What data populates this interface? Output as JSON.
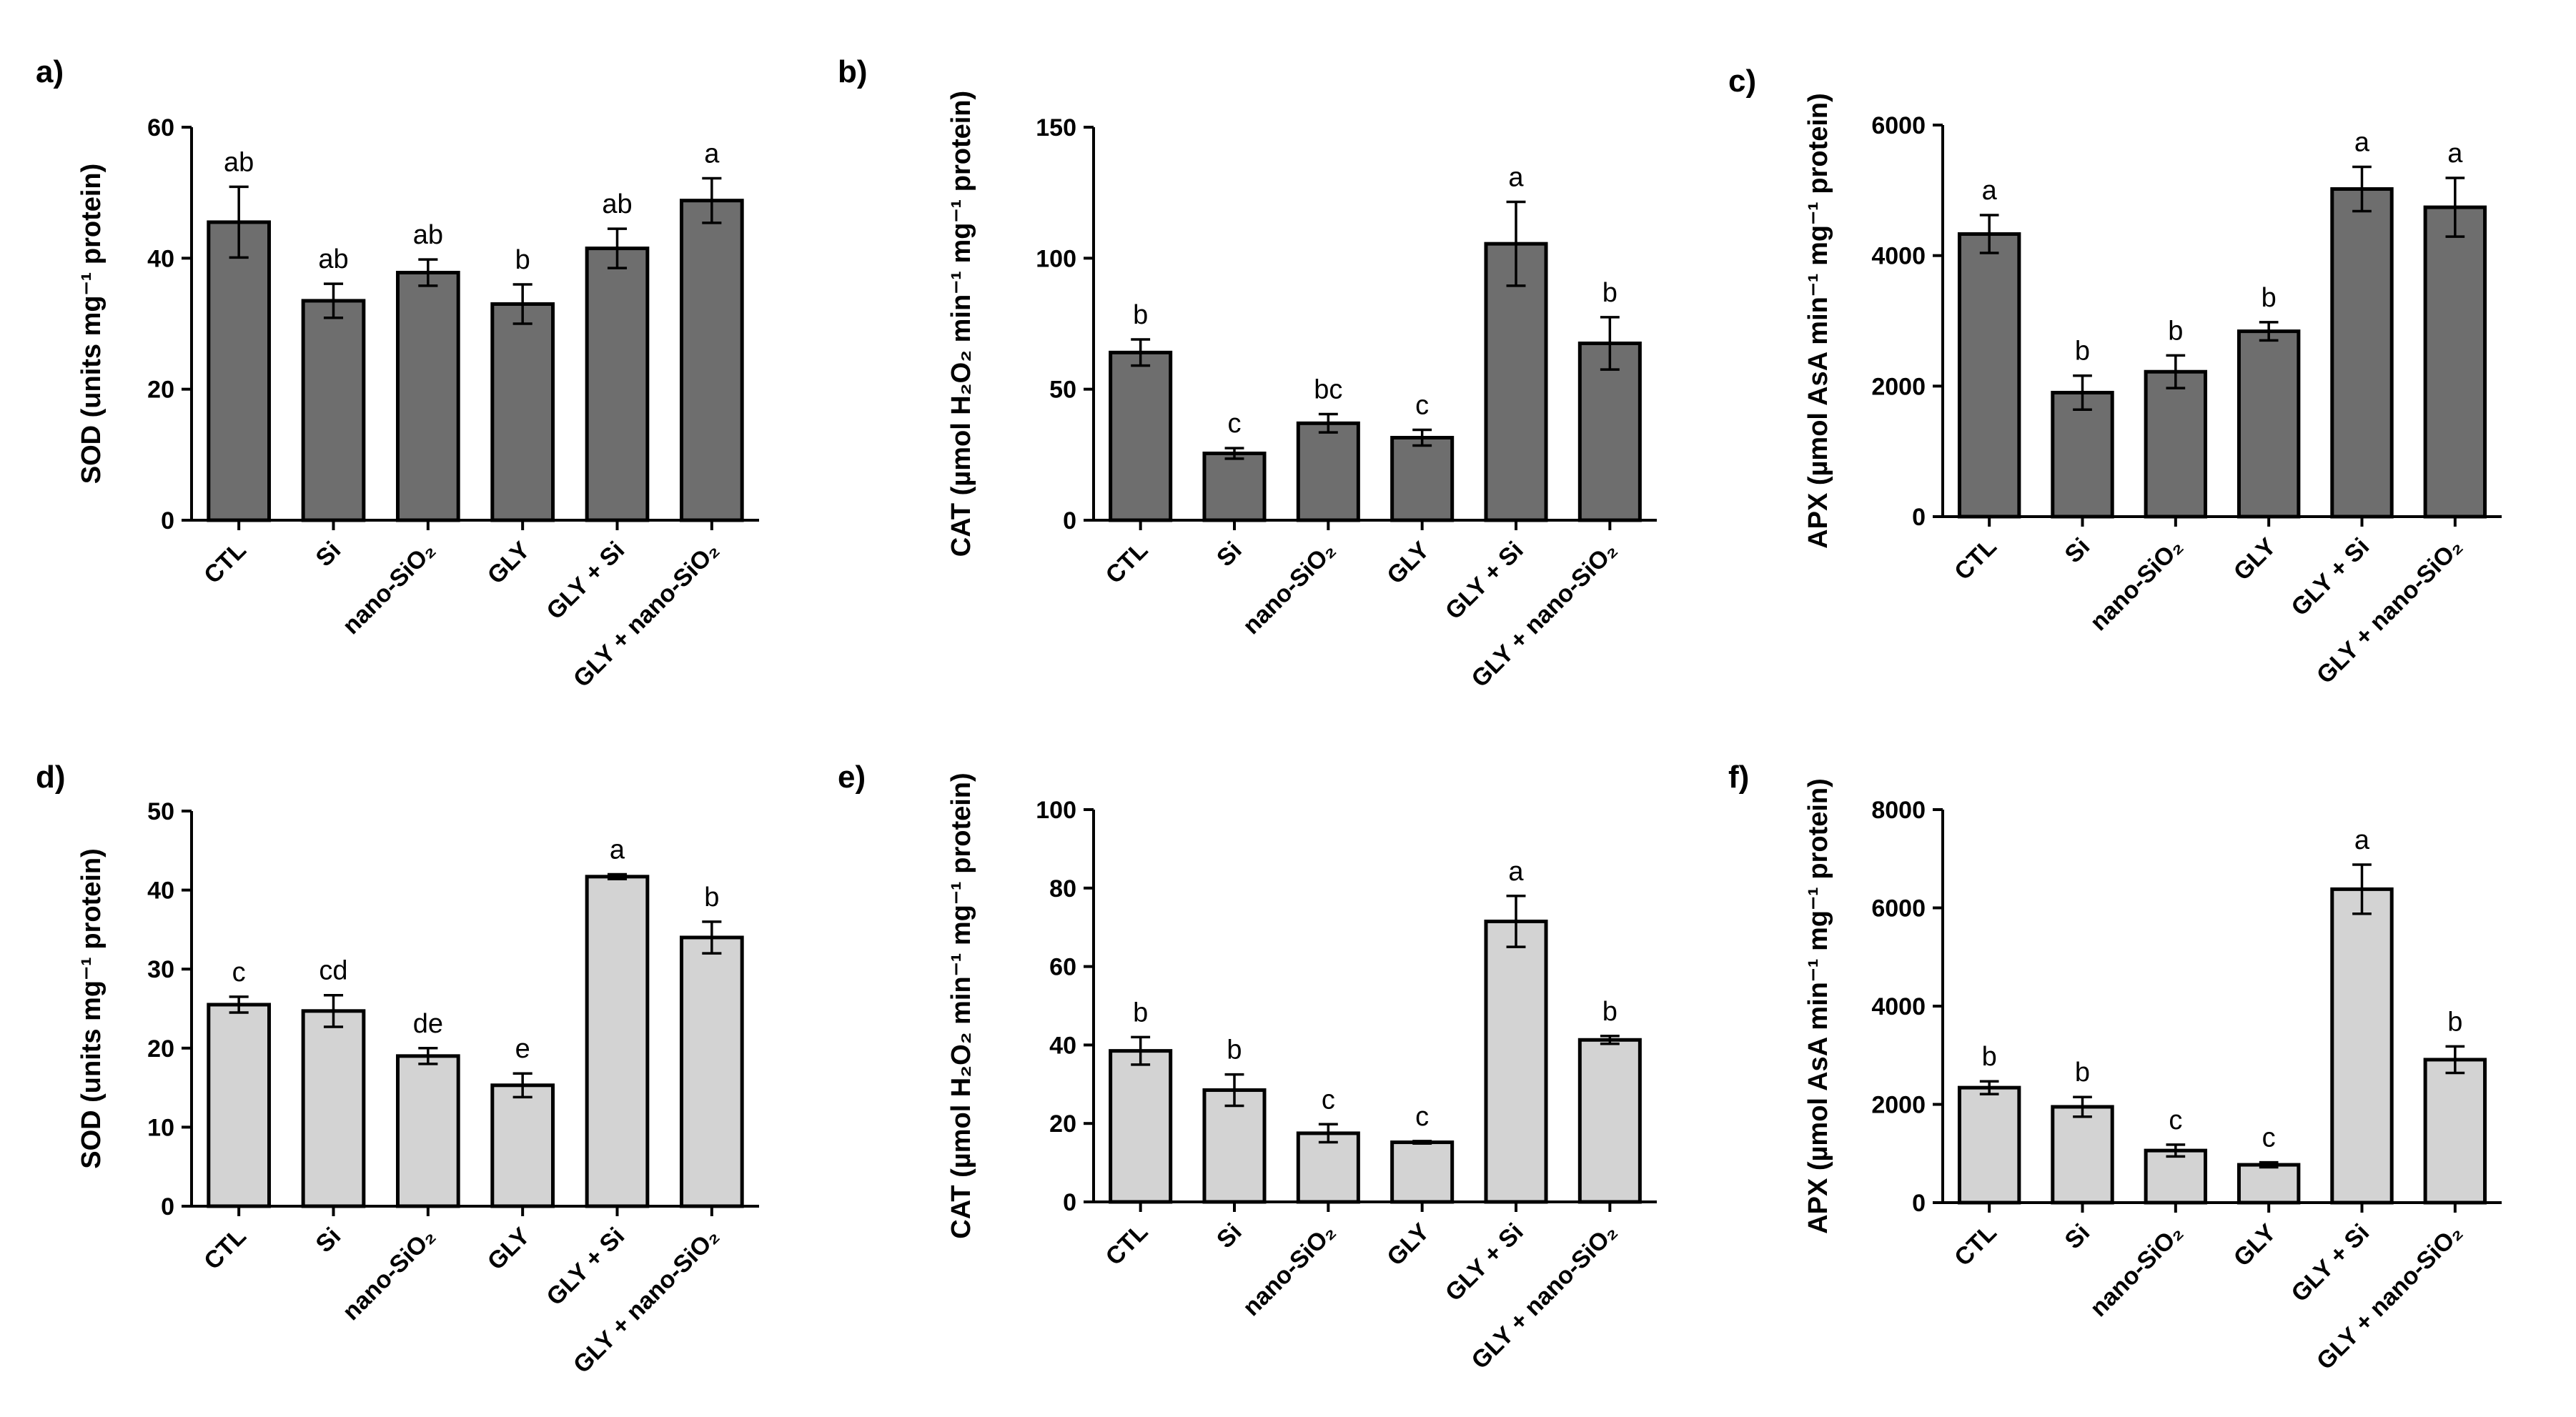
{
  "figure": {
    "layout": "2 rows x 3 columns"
  },
  "chart_data": [
    {
      "type": "bar",
      "panel": "a)",
      "ylabel": "SOD (units mg⁻¹ protein)",
      "categories": [
        "CTL",
        "Si",
        "nano-SiO₂",
        "GLY",
        "GLY + Si",
        "GLY + nano-SiO₂"
      ],
      "values": [
        45.5,
        33.5,
        37.8,
        33.0,
        41.5,
        48.8
      ],
      "errors": [
        5.4,
        2.6,
        2.0,
        3.0,
        3.0,
        3.4
      ],
      "letters": [
        "ab",
        "ab",
        "ab",
        "b",
        "ab",
        "a"
      ],
      "ylim": [
        0,
        60
      ],
      "yticks": [
        0,
        20,
        40,
        60
      ],
      "color": "#6e6e6e"
    },
    {
      "type": "bar",
      "panel": "b)",
      "ylabel": "CAT (µmol H₂O₂ min⁻¹ mg⁻¹ protein)",
      "categories": [
        "CTL",
        "Si",
        "nano-SiO₂",
        "GLY",
        "GLY + Si",
        "GLY + nano-SiO₂"
      ],
      "values": [
        64,
        25.5,
        37,
        31.5,
        105.5,
        67.5
      ],
      "errors": [
        5,
        2,
        3.5,
        3,
        16,
        10
      ],
      "letters": [
        "b",
        "c",
        "bc",
        "c",
        "a",
        "b"
      ],
      "ylim": [
        0,
        150
      ],
      "yticks": [
        0,
        50,
        100,
        150
      ],
      "color": "#6e6e6e"
    },
    {
      "type": "bar",
      "panel": "c)",
      "ylabel": "APX (µmol AsA min⁻¹ mg⁻¹ protein)",
      "categories": [
        "CTL",
        "Si",
        "nano-SiO₂",
        "GLY",
        "GLY + Si",
        "GLY + nano-SiO₂"
      ],
      "values": [
        4330,
        1900,
        2220,
        2840,
        5020,
        4740
      ],
      "errors": [
        290,
        260,
        250,
        140,
        340,
        450
      ],
      "letters": [
        "a",
        "b",
        "b",
        "b",
        "a",
        "a"
      ],
      "ylim": [
        0,
        6000
      ],
      "yticks": [
        0,
        2000,
        4000,
        6000
      ],
      "color": "#6e6e6e"
    },
    {
      "type": "bar",
      "panel": "d)",
      "ylabel": "SOD (units mg⁻¹ protein)",
      "categories": [
        "CTL",
        "Si",
        "nano-SiO₂",
        "GLY",
        "GLY + Si",
        "GLY + nano-SiO₂"
      ],
      "values": [
        25.5,
        24.7,
        19.0,
        15.3,
        41.7,
        34.0
      ],
      "errors": [
        1.0,
        2.0,
        1.0,
        1.5,
        0.3,
        2.0
      ],
      "letters": [
        "c",
        "cd",
        "de",
        "e",
        "a",
        "b"
      ],
      "ylim": [
        0,
        50
      ],
      "yticks": [
        0,
        10,
        20,
        30,
        40,
        50
      ],
      "color": "#d3d3d3"
    },
    {
      "type": "bar",
      "panel": "e)",
      "ylabel": "CAT (µmol H₂O₂ min⁻¹ mg⁻¹ protein)",
      "categories": [
        "CTL",
        "Si",
        "nano-SiO₂",
        "GLY",
        "GLY + Si",
        "GLY + nano-SiO₂"
      ],
      "values": [
        38.5,
        28.5,
        17.5,
        15.2,
        71.5,
        41.3
      ],
      "errors": [
        3.5,
        4.0,
        2.3,
        0.3,
        6.5,
        1.0
      ],
      "letters": [
        "b",
        "b",
        "c",
        "c",
        "a",
        "b"
      ],
      "ylim": [
        0,
        100
      ],
      "yticks": [
        0,
        20,
        40,
        60,
        80,
        100
      ],
      "color": "#d3d3d3"
    },
    {
      "type": "bar",
      "panel": "f)",
      "ylabel": "APX (µmol AsA min⁻¹ mg⁻¹ protein)",
      "categories": [
        "CTL",
        "Si",
        "nano-SiO₂",
        "GLY",
        "GLY + Si",
        "GLY + nano-SiO₂"
      ],
      "values": [
        2340,
        1950,
        1060,
        770,
        6380,
        2910
      ],
      "errors": [
        130,
        200,
        120,
        50,
        500,
        270
      ],
      "letters": [
        "b",
        "b",
        "c",
        "c",
        "a",
        "b"
      ],
      "ylim": [
        0,
        8000
      ],
      "yticks": [
        0,
        2000,
        4000,
        6000,
        8000
      ],
      "color": "#d3d3d3"
    }
  ]
}
